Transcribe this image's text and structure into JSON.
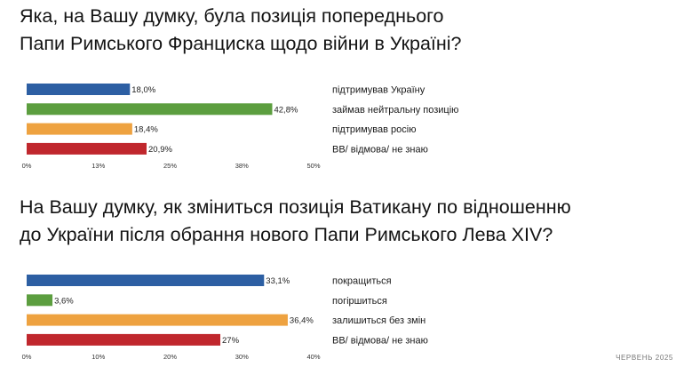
{
  "charts": [
    {
      "title_lines": [
        "Яка, на Вашу думку, була позиція попереднього",
        "Папи Римського Франциска щодо війни в Україні?"
      ],
      "chart_data": {
        "type": "bar",
        "orientation": "horizontal",
        "categories": [
          "підтримував Україну",
          "займав нейтральну позицію",
          "підтримував росію",
          "ВВ/ відмова/ не знаю"
        ],
        "values": [
          18.0,
          42.8,
          18.4,
          20.9
        ],
        "value_labels": [
          "18,0%",
          "42,8%",
          "18,4%",
          "20,9%"
        ],
        "colors": [
          "#2d5fa3",
          "#5c9e3f",
          "#eea240",
          "#c0272d"
        ],
        "xlim": [
          0,
          50
        ],
        "xticks": [
          "0%",
          "13%",
          "25%",
          "38%",
          "50%"
        ],
        "legend_placement": "right"
      }
    },
    {
      "title_lines": [
        "На Вашу думку, як зміниться позиція Ватикану по відношенню",
        "до України після обрання нового Папи Римського Лева XIV?"
      ],
      "chart_data": {
        "type": "bar",
        "orientation": "horizontal",
        "categories": [
          "покращиться",
          "погіршиться",
          "залишиться без змін",
          "ВВ/ відмова/ не знаю"
        ],
        "values": [
          33.1,
          3.6,
          36.4,
          27
        ],
        "value_labels": [
          "33,1%",
          "3,6%",
          "36,4%",
          "27%"
        ],
        "colors": [
          "#2d5fa3",
          "#5c9e3f",
          "#eea240",
          "#c0272d"
        ],
        "xlim": [
          0,
          40
        ],
        "xticks": [
          "0%",
          "10%",
          "20%",
          "30%",
          "40%"
        ],
        "legend_placement": "right"
      }
    }
  ],
  "footer": "ЧЕРВЕНЬ 2025"
}
